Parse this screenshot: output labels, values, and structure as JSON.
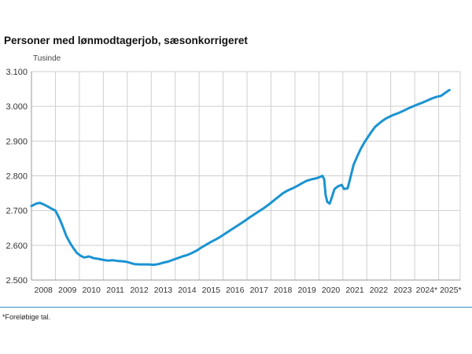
{
  "title": "Personer med lønmodtagerjob, sæsonkorrigeret",
  "footnote": "*Foreløbige tal.",
  "colors": {
    "line": "#1b93d2",
    "grid": "#cfcfcf",
    "axis": "#9a9a9a",
    "rule": "#3d8fc4"
  },
  "chart_data": {
    "type": "line",
    "ylabel": "Tusinde",
    "ylim": [
      2500,
      3100
    ],
    "yticks": [
      2500,
      2600,
      2700,
      2800,
      2900,
      3000,
      3100
    ],
    "ytick_labels": [
      "2.500",
      "2.600",
      "2.700",
      "2.800",
      "2.900",
      "3.000",
      "3.100"
    ],
    "xlim": [
      2008,
      2025.9
    ],
    "x_categories": [
      "2008",
      "2009",
      "2010",
      "2011",
      "2012",
      "2013",
      "2014",
      "2015",
      "2016",
      "2017",
      "2018",
      "2019",
      "2020",
      "2021",
      "2022",
      "2023",
      "2024*",
      "2025*"
    ],
    "grid": true,
    "series": [
      {
        "points": [
          [
            2008.0,
            2713
          ],
          [
            2008.2,
            2720
          ],
          [
            2008.35,
            2722
          ],
          [
            2008.5,
            2718
          ],
          [
            2008.7,
            2711
          ],
          [
            2008.85,
            2705
          ],
          [
            2009.0,
            2700
          ],
          [
            2009.15,
            2680
          ],
          [
            2009.3,
            2655
          ],
          [
            2009.45,
            2628
          ],
          [
            2009.6,
            2608
          ],
          [
            2009.75,
            2592
          ],
          [
            2009.9,
            2578
          ],
          [
            2010.05,
            2570
          ],
          [
            2010.2,
            2565
          ],
          [
            2010.4,
            2568
          ],
          [
            2010.6,
            2563
          ],
          [
            2010.8,
            2561
          ],
          [
            2011.0,
            2558
          ],
          [
            2011.2,
            2556
          ],
          [
            2011.4,
            2557
          ],
          [
            2011.6,
            2555
          ],
          [
            2011.8,
            2554
          ],
          [
            2012.0,
            2552
          ],
          [
            2012.15,
            2549
          ],
          [
            2012.3,
            2546
          ],
          [
            2012.5,
            2545
          ],
          [
            2012.7,
            2545
          ],
          [
            2012.9,
            2545
          ],
          [
            2013.1,
            2544
          ],
          [
            2013.3,
            2546
          ],
          [
            2013.5,
            2550
          ],
          [
            2013.7,
            2553
          ],
          [
            2013.9,
            2558
          ],
          [
            2014.1,
            2563
          ],
          [
            2014.3,
            2568
          ],
          [
            2014.5,
            2572
          ],
          [
            2014.7,
            2578
          ],
          [
            2014.9,
            2585
          ],
          [
            2015.1,
            2594
          ],
          [
            2015.3,
            2602
          ],
          [
            2015.5,
            2610
          ],
          [
            2015.7,
            2617
          ],
          [
            2015.9,
            2625
          ],
          [
            2016.1,
            2634
          ],
          [
            2016.3,
            2643
          ],
          [
            2016.5,
            2652
          ],
          [
            2016.7,
            2661
          ],
          [
            2016.9,
            2670
          ],
          [
            2017.1,
            2680
          ],
          [
            2017.3,
            2689
          ],
          [
            2017.5,
            2698
          ],
          [
            2017.7,
            2707
          ],
          [
            2017.9,
            2717
          ],
          [
            2018.1,
            2728
          ],
          [
            2018.3,
            2739
          ],
          [
            2018.5,
            2750
          ],
          [
            2018.7,
            2758
          ],
          [
            2018.9,
            2764
          ],
          [
            2019.1,
            2771
          ],
          [
            2019.3,
            2779
          ],
          [
            2019.5,
            2786
          ],
          [
            2019.7,
            2790
          ],
          [
            2019.9,
            2793
          ],
          [
            2020.05,
            2797
          ],
          [
            2020.15,
            2800
          ],
          [
            2020.22,
            2790
          ],
          [
            2020.28,
            2745
          ],
          [
            2020.35,
            2725
          ],
          [
            2020.45,
            2720
          ],
          [
            2020.55,
            2740
          ],
          [
            2020.65,
            2762
          ],
          [
            2020.8,
            2770
          ],
          [
            2020.95,
            2774
          ],
          [
            2021.05,
            2762
          ],
          [
            2021.2,
            2764
          ],
          [
            2021.3,
            2790
          ],
          [
            2021.45,
            2832
          ],
          [
            2021.6,
            2856
          ],
          [
            2021.75,
            2878
          ],
          [
            2021.9,
            2896
          ],
          [
            2022.05,
            2912
          ],
          [
            2022.2,
            2927
          ],
          [
            2022.35,
            2941
          ],
          [
            2022.5,
            2950
          ],
          [
            2022.65,
            2958
          ],
          [
            2022.8,
            2965
          ],
          [
            2022.95,
            2970
          ],
          [
            2023.1,
            2975
          ],
          [
            2023.3,
            2980
          ],
          [
            2023.5,
            2986
          ],
          [
            2023.7,
            2993
          ],
          [
            2023.9,
            2999
          ],
          [
            2024.1,
            3005
          ],
          [
            2024.3,
            3010
          ],
          [
            2024.5,
            3016
          ],
          [
            2024.7,
            3022
          ],
          [
            2024.9,
            3027
          ],
          [
            2025.1,
            3030
          ],
          [
            2025.3,
            3040
          ],
          [
            2025.45,
            3047
          ]
        ]
      }
    ]
  }
}
